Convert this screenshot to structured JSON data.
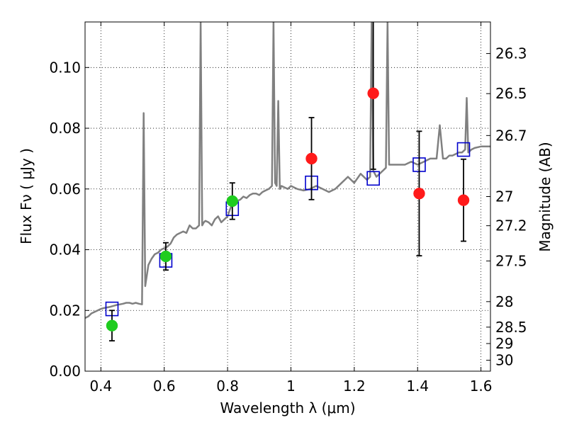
{
  "chart_data": {
    "type": "scatter",
    "xlabel": "Wavelength  λ (μm)",
    "ylabel": "Flux  Fν  ( μJy )",
    "y2label": "Magnitude (AB)",
    "xlim": [
      0.35,
      1.63
    ],
    "ylim": [
      0.0,
      0.115
    ],
    "grid": true,
    "x_ticks": [
      0.4,
      0.6,
      0.8,
      1.0,
      1.2,
      1.4,
      1.6
    ],
    "x_tick_labels": [
      "0.4",
      "0.6",
      "0.8",
      "1",
      "1.2",
      "1.4",
      "1.6"
    ],
    "y_ticks": [
      0.0,
      0.02,
      0.04,
      0.06,
      0.08,
      0.1
    ],
    "y_tick_labels": [
      "0.00",
      "0.02",
      "0.04",
      "0.06",
      "0.08",
      "0.10"
    ],
    "y2_ticks": [
      {
        "label": "26.3",
        "flux": 0.1046
      },
      {
        "label": "26.5",
        "flux": 0.0914
      },
      {
        "label": "26.7",
        "flux": 0.0776
      },
      {
        "label": "27",
        "flux": 0.0575
      },
      {
        "label": "27.2",
        "flux": 0.0479
      },
      {
        "label": "27.5",
        "flux": 0.0363
      },
      {
        "label": "28",
        "flux": 0.0229
      },
      {
        "label": "28.5",
        "flux": 0.0145
      },
      {
        "label": "29",
        "flux": 0.0091
      },
      {
        "label": "30",
        "flux": 0.0036
      }
    ],
    "series": [
      {
        "color": "#808080",
        "style": "line",
        "x": [
          0.35,
          0.36,
          0.37,
          0.38,
          0.39,
          0.4,
          0.41,
          0.42,
          0.43,
          0.44,
          0.45,
          0.46,
          0.47,
          0.48,
          0.49,
          0.5,
          0.51,
          0.52,
          0.53,
          0.535,
          0.54,
          0.55,
          0.56,
          0.57,
          0.58,
          0.59,
          0.6,
          0.61,
          0.62,
          0.63,
          0.64,
          0.65,
          0.66,
          0.67,
          0.68,
          0.69,
          0.7,
          0.71,
          0.715,
          0.72,
          0.725,
          0.73,
          0.74,
          0.75,
          0.76,
          0.77,
          0.78,
          0.79,
          0.8,
          0.81,
          0.82,
          0.83,
          0.84,
          0.85,
          0.86,
          0.87,
          0.88,
          0.89,
          0.9,
          0.91,
          0.92,
          0.93,
          0.94,
          0.945,
          0.95,
          0.955,
          0.96,
          0.965,
          0.97,
          0.98,
          0.99,
          1.0,
          1.02,
          1.04,
          1.06,
          1.08,
          1.1,
          1.12,
          1.14,
          1.16,
          1.18,
          1.2,
          1.22,
          1.24,
          1.25,
          1.255,
          1.26,
          1.27,
          1.28,
          1.29,
          1.3,
          1.305,
          1.31,
          1.32,
          1.34,
          1.36,
          1.38,
          1.4,
          1.42,
          1.44,
          1.46,
          1.47,
          1.48,
          1.49,
          1.5,
          1.51,
          1.52,
          1.53,
          1.54,
          1.55,
          1.555,
          1.56,
          1.57,
          1.58,
          1.6,
          1.63
        ],
        "y": [
          0.0175,
          0.018,
          0.019,
          0.0195,
          0.02,
          0.0205,
          0.0208,
          0.021,
          0.0212,
          0.0215,
          0.0218,
          0.022,
          0.0222,
          0.0225,
          0.0225,
          0.0222,
          0.0225,
          0.0222,
          0.022,
          0.085,
          0.028,
          0.035,
          0.037,
          0.0385,
          0.039,
          0.04,
          0.0405,
          0.041,
          0.042,
          0.044,
          0.045,
          0.0455,
          0.046,
          0.0455,
          0.048,
          0.047,
          0.047,
          0.048,
          0.115,
          0.048,
          0.049,
          0.0495,
          0.049,
          0.048,
          0.05,
          0.051,
          0.049,
          0.05,
          0.051,
          0.054,
          0.055,
          0.056,
          0.0565,
          0.0575,
          0.057,
          0.058,
          0.0585,
          0.0585,
          0.058,
          0.059,
          0.0595,
          0.06,
          0.061,
          0.115,
          0.062,
          0.061,
          0.089,
          0.06,
          0.061,
          0.0605,
          0.06,
          0.061,
          0.06,
          0.0595,
          0.06,
          0.061,
          0.06,
          0.059,
          0.06,
          0.062,
          0.064,
          0.062,
          0.065,
          0.063,
          0.064,
          0.115,
          0.066,
          0.064,
          0.065,
          0.066,
          0.067,
          0.115,
          0.068,
          0.068,
          0.068,
          0.068,
          0.069,
          0.068,
          0.069,
          0.07,
          0.07,
          0.081,
          0.07,
          0.07,
          0.071,
          0.071,
          0.0715,
          0.072,
          0.072,
          0.073,
          0.09,
          0.072,
          0.073,
          0.0735,
          0.074,
          0.074
        ]
      },
      {
        "color": "#0000cc",
        "style": "open-square",
        "x": [
          0.435,
          0.605,
          0.815,
          1.065,
          1.26,
          1.405,
          1.545
        ],
        "y": [
          0.0205,
          0.0365,
          0.0535,
          0.062,
          0.0635,
          0.068,
          0.073
        ]
      },
      {
        "color": "#1fcc1f",
        "style": "filled-circle",
        "x": [
          0.435,
          0.605,
          0.815
        ],
        "y": [
          0.015,
          0.0378,
          0.056
        ],
        "yerr": [
          0.005,
          0.0045,
          0.006
        ]
      },
      {
        "color": "#ff1a1a",
        "style": "filled-circle",
        "x": [
          1.065,
          1.26,
          1.405,
          1.545
        ],
        "y": [
          0.07,
          0.0915,
          0.0585,
          0.0563
        ],
        "yerr": [
          0.0135,
          0.025,
          0.0205,
          0.0135
        ]
      }
    ]
  }
}
